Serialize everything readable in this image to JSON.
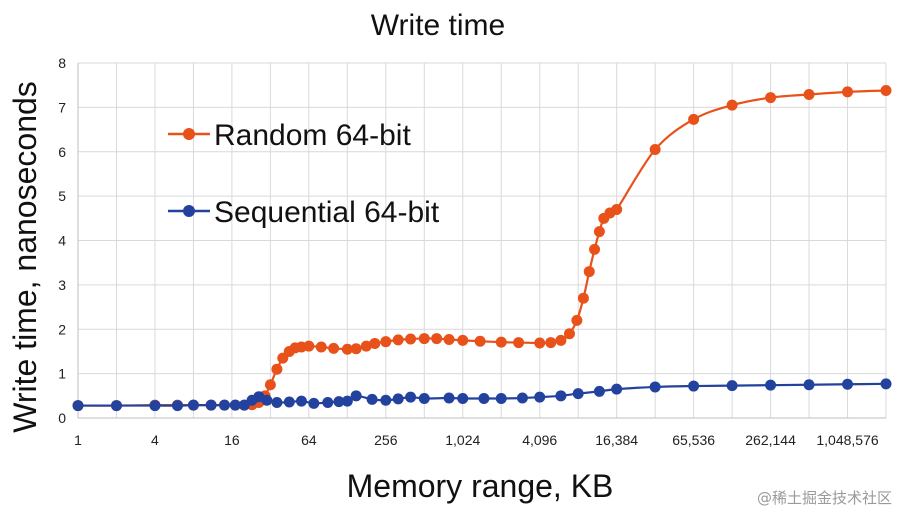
{
  "chart_data": {
    "type": "line",
    "title": "Write time",
    "xlabel": "Memory range, KB",
    "ylabel": "Write time, nanoseconds",
    "x_scale": "log2",
    "xlim": [
      1,
      2097152
    ],
    "ylim": [
      0,
      8
    ],
    "y_ticks": [
      "0",
      "1",
      "2",
      "3",
      "4",
      "5",
      "6",
      "7",
      "8"
    ],
    "x_ticks": [
      {
        "value": 1,
        "label": "1"
      },
      {
        "value": 4,
        "label": "4"
      },
      {
        "value": 16,
        "label": "16"
      },
      {
        "value": 64,
        "label": "64"
      },
      {
        "value": 256,
        "label": "256"
      },
      {
        "value": 1024,
        "label": "1,024"
      },
      {
        "value": 4096,
        "label": "4,096"
      },
      {
        "value": 16384,
        "label": "16,384"
      },
      {
        "value": 65536,
        "label": "65,536"
      },
      {
        "value": 262144,
        "label": "262,144"
      },
      {
        "value": 1048576,
        "label": "1,048,576"
      }
    ],
    "grid": true,
    "legend_position": "upper-left",
    "series": [
      {
        "name": "Random 64-bit",
        "color": "#E8521A",
        "points": [
          [
            1,
            0.28
          ],
          [
            2,
            0.28
          ],
          [
            4,
            0.29
          ],
          [
            6,
            0.29
          ],
          [
            8,
            0.29
          ],
          [
            11,
            0.29
          ],
          [
            14,
            0.29
          ],
          [
            17,
            0.29
          ],
          [
            20,
            0.29
          ],
          [
            23,
            0.3
          ],
          [
            26,
            0.35
          ],
          [
            29,
            0.5
          ],
          [
            32,
            0.75
          ],
          [
            36,
            1.1
          ],
          [
            40,
            1.35
          ],
          [
            45,
            1.5
          ],
          [
            50,
            1.58
          ],
          [
            56,
            1.6
          ],
          [
            64,
            1.62
          ],
          [
            80,
            1.6
          ],
          [
            100,
            1.57
          ],
          [
            128,
            1.55
          ],
          [
            150,
            1.56
          ],
          [
            180,
            1.62
          ],
          [
            210,
            1.68
          ],
          [
            256,
            1.72
          ],
          [
            320,
            1.76
          ],
          [
            400,
            1.78
          ],
          [
            512,
            1.79
          ],
          [
            640,
            1.79
          ],
          [
            800,
            1.77
          ],
          [
            1024,
            1.75
          ],
          [
            1400,
            1.73
          ],
          [
            2048,
            1.71
          ],
          [
            2800,
            1.7
          ],
          [
            4096,
            1.69
          ],
          [
            5000,
            1.7
          ],
          [
            6000,
            1.75
          ],
          [
            7000,
            1.9
          ],
          [
            8000,
            2.2
          ],
          [
            9000,
            2.7
          ],
          [
            10000,
            3.3
          ],
          [
            11000,
            3.8
          ],
          [
            12000,
            4.2
          ],
          [
            13000,
            4.5
          ],
          [
            14500,
            4.62
          ],
          [
            16384,
            4.7
          ],
          [
            32768,
            6.05
          ],
          [
            65536,
            6.73
          ],
          [
            131072,
            7.05
          ],
          [
            262144,
            7.22
          ],
          [
            524288,
            7.29
          ],
          [
            1048576,
            7.35
          ],
          [
            2097152,
            7.38
          ]
        ]
      },
      {
        "name": "Sequential 64-bit",
        "color": "#23429E",
        "points": [
          [
            1,
            0.28
          ],
          [
            2,
            0.28
          ],
          [
            4,
            0.28
          ],
          [
            6,
            0.28
          ],
          [
            8,
            0.29
          ],
          [
            11,
            0.29
          ],
          [
            14,
            0.29
          ],
          [
            17,
            0.29
          ],
          [
            20,
            0.29
          ],
          [
            23,
            0.4
          ],
          [
            26,
            0.48
          ],
          [
            30,
            0.4
          ],
          [
            36,
            0.35
          ],
          [
            45,
            0.36
          ],
          [
            56,
            0.38
          ],
          [
            70,
            0.33
          ],
          [
            90,
            0.35
          ],
          [
            110,
            0.37
          ],
          [
            128,
            0.38
          ],
          [
            150,
            0.5
          ],
          [
            200,
            0.42
          ],
          [
            256,
            0.4
          ],
          [
            320,
            0.43
          ],
          [
            400,
            0.47
          ],
          [
            512,
            0.44
          ],
          [
            800,
            0.45
          ],
          [
            1024,
            0.44
          ],
          [
            1500,
            0.44
          ],
          [
            2048,
            0.44
          ],
          [
            3000,
            0.45
          ],
          [
            4096,
            0.47
          ],
          [
            6000,
            0.5
          ],
          [
            8192,
            0.55
          ],
          [
            12000,
            0.6
          ],
          [
            16384,
            0.65
          ],
          [
            32768,
            0.7
          ],
          [
            65536,
            0.72
          ],
          [
            131072,
            0.73
          ],
          [
            262144,
            0.74
          ],
          [
            524288,
            0.75
          ],
          [
            1048576,
            0.76
          ],
          [
            2097152,
            0.77
          ]
        ]
      }
    ]
  },
  "watermark": "@稀土掘金技术社区"
}
